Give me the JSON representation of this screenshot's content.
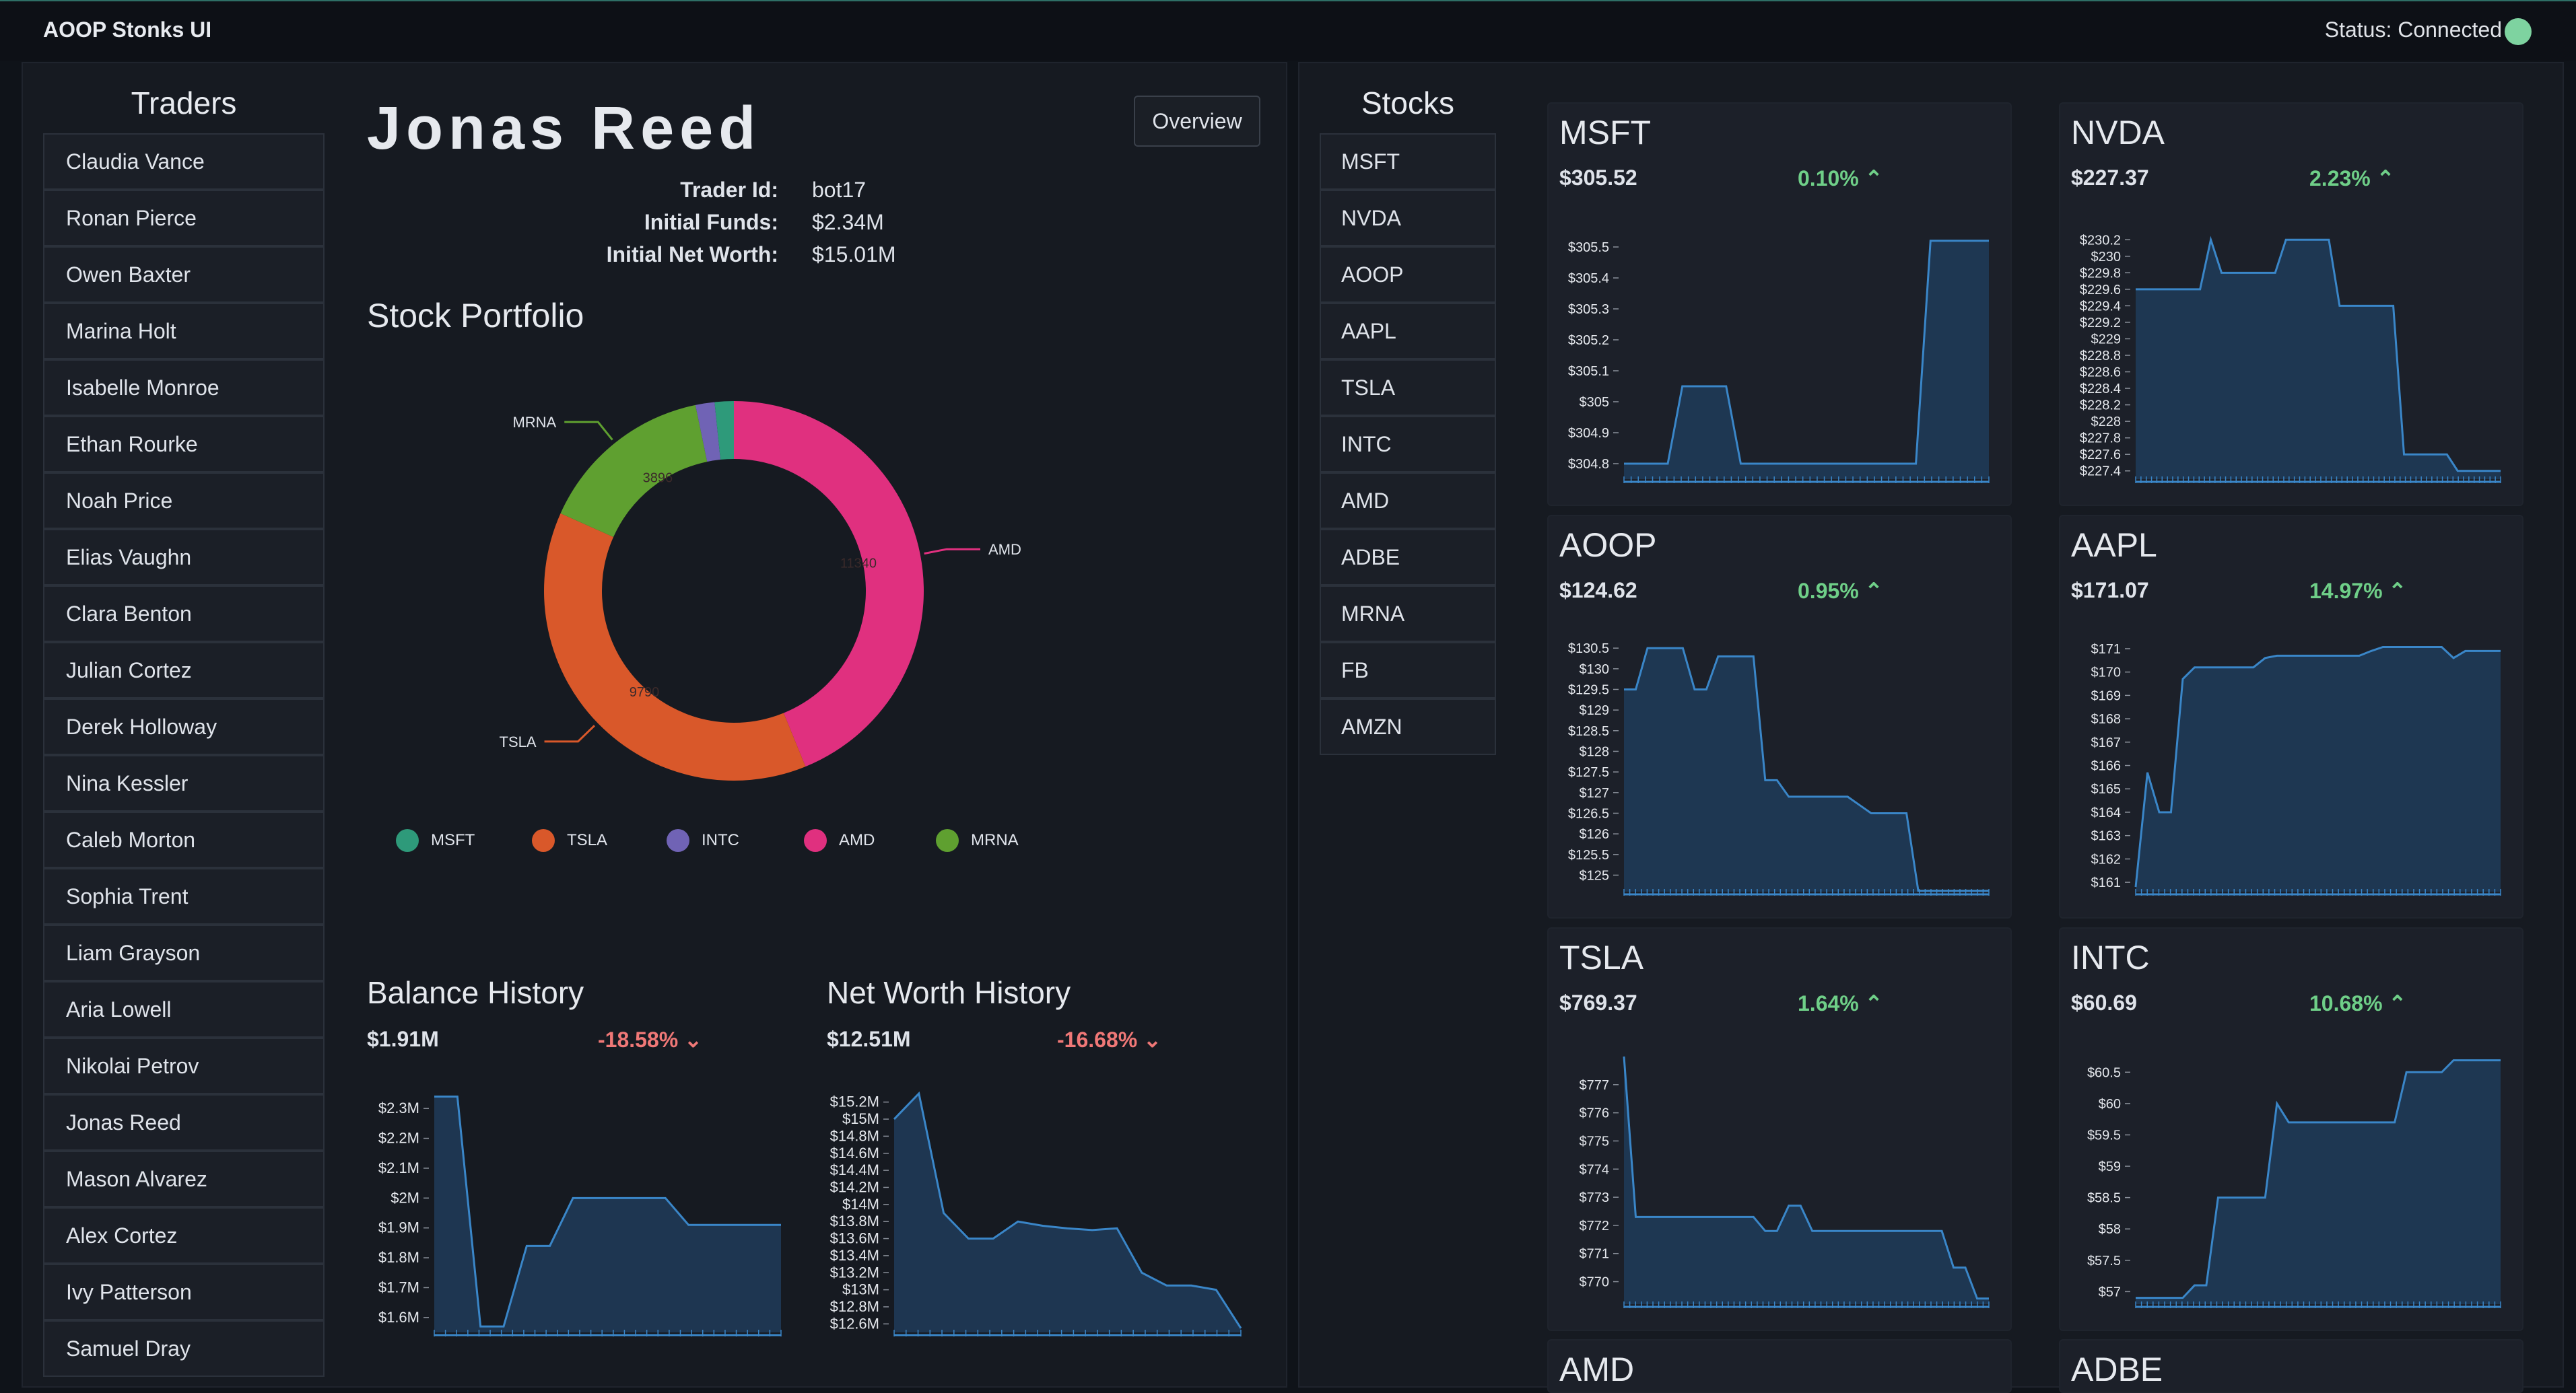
{
  "app": {
    "title": "AOOP Stonks UI",
    "status": "Status: Connected",
    "status_color": "#7ed3a0"
  },
  "traders": {
    "title": "Traders",
    "items": [
      "Claudia Vance",
      "Ronan Pierce",
      "Owen Baxter",
      "Marina Holt",
      "Isabelle Monroe",
      "Ethan Rourke",
      "Noah Price",
      "Elias Vaughn",
      "Clara Benton",
      "Julian Cortez",
      "Derek Holloway",
      "Nina Kessler",
      "Caleb Morton",
      "Sophia Trent",
      "Liam Grayson",
      "Aria Lowell",
      "Nikolai Petrov",
      "Jonas Reed",
      "Mason Alvarez",
      "Alex Cortez",
      "Ivy Patterson",
      "Samuel Dray"
    ]
  },
  "trader": {
    "name": "Jonas Reed",
    "overview_label": "Overview",
    "id_label": "Trader Id:",
    "id_value": "bot17",
    "funds_label": "Initial Funds:",
    "funds_value": "$2.34M",
    "networth_label": "Initial Net Worth:",
    "networth_value": "$15.01M"
  },
  "portfolio": {
    "title": "Stock Portfolio",
    "chart_data": {
      "type": "pie",
      "donut": true,
      "slices": [
        {
          "label": "AMD",
          "value": 11340,
          "color": "#e0307f"
        },
        {
          "label": "TSLA",
          "value": 9790,
          "color": "#d9582a"
        },
        {
          "label": "MRNA",
          "value": 3896,
          "color": "#5fa030"
        },
        {
          "label": "INTC",
          "value": 420,
          "color": "#7063b5"
        },
        {
          "label": "MSFT",
          "value": 420,
          "color": "#2e9a7a"
        }
      ],
      "legend": [
        "MSFT",
        "TSLA",
        "INTC",
        "AMD",
        "MRNA"
      ],
      "legend_placement": "bottom"
    }
  },
  "balance": {
    "title": "Balance History",
    "value": "$1.91M",
    "change": "-18.58%",
    "chart_data": {
      "type": "area",
      "ylim": [
        1.55,
        2.35
      ],
      "yticks": [
        "$1.6M",
        "$1.7M",
        "$1.8M",
        "$1.9M",
        "$2M",
        "$2.1M",
        "$2.2M",
        "$2.3M"
      ],
      "ytick_values": [
        1.6,
        1.7,
        1.8,
        1.9,
        2.0,
        2.1,
        2.2,
        2.3
      ],
      "values": [
        2.34,
        2.34,
        1.57,
        1.57,
        1.84,
        1.84,
        2.0,
        2.0,
        2.0,
        2.0,
        2.0,
        1.91,
        1.91,
        1.91,
        1.91,
        1.91
      ]
    }
  },
  "networth": {
    "title": "Net Worth History",
    "value": "$12.51M",
    "change": "-16.68%",
    "chart_data": {
      "type": "area",
      "ylim": [
        12.5,
        15.3
      ],
      "yticks": [
        "$12.6M",
        "$12.8M",
        "$13M",
        "$13.2M",
        "$13.4M",
        "$13.6M",
        "$13.8M",
        "$14M",
        "$14.2M",
        "$14.4M",
        "$14.6M",
        "$14.8M",
        "$15M",
        "$15.2M"
      ],
      "ytick_values": [
        12.6,
        12.8,
        13.0,
        13.2,
        13.4,
        13.6,
        13.8,
        14.0,
        14.2,
        14.4,
        14.6,
        14.8,
        15.0,
        15.2
      ],
      "values": [
        15.0,
        15.3,
        13.9,
        13.6,
        13.6,
        13.8,
        13.75,
        13.72,
        13.7,
        13.72,
        13.2,
        13.05,
        13.05,
        13.0,
        12.55
      ]
    }
  },
  "stocks": {
    "title": "Stocks",
    "items": [
      "MSFT",
      "NVDA",
      "AOOP",
      "AAPL",
      "TSLA",
      "INTC",
      "AMD",
      "ADBE",
      "MRNA",
      "FB",
      "AMZN"
    ]
  },
  "cards": [
    {
      "ticker": "MSFT",
      "price": "$305.52",
      "change": "0.10%",
      "chart_data": {
        "type": "area",
        "ylim": [
          304.75,
          305.55
        ],
        "yticks": [
          "$305.5",
          "$305.4",
          "$305.3",
          "$305.2",
          "$305.1",
          "$305",
          "$304.9",
          "$304.8"
        ],
        "ytick_values": [
          305.5,
          305.4,
          305.3,
          305.2,
          305.1,
          305.0,
          304.9,
          304.8
        ],
        "values": [
          304.8,
          304.8,
          304.8,
          304.8,
          305.05,
          305.05,
          305.05,
          305.05,
          304.8,
          304.8,
          304.8,
          304.8,
          304.8,
          304.8,
          304.8,
          304.8,
          304.8,
          304.8,
          304.8,
          304.8,
          304.8,
          305.52,
          305.52,
          305.52,
          305.52,
          305.52
        ]
      }
    },
    {
      "ticker": "NVDA",
      "price": "$227.37",
      "change": "2.23%",
      "chart_data": {
        "type": "area",
        "ylim": [
          227.3,
          230.3
        ],
        "yticks": [
          "$230.2",
          "$230",
          "$229.8",
          "$229.6",
          "$229.4",
          "$229.2",
          "$229",
          "$228.8",
          "$228.6",
          "$228.4",
          "$228.2",
          "$228",
          "$227.8",
          "$227.6",
          "$227.4"
        ],
        "ytick_values": [
          230.2,
          230.0,
          229.8,
          229.6,
          229.4,
          229.2,
          229.0,
          228.8,
          228.6,
          228.4,
          228.2,
          228.0,
          227.8,
          227.6,
          227.4
        ],
        "values": [
          229.6,
          229.6,
          229.6,
          229.6,
          229.6,
          229.6,
          229.6,
          230.2,
          229.8,
          229.8,
          229.8,
          229.8,
          229.8,
          229.8,
          230.2,
          230.2,
          230.2,
          230.2,
          230.2,
          229.4,
          229.4,
          229.4,
          229.4,
          229.4,
          229.4,
          227.6,
          227.6,
          227.6,
          227.6,
          227.6,
          227.4,
          227.4,
          227.4,
          227.4,
          227.4
        ]
      }
    },
    {
      "ticker": "AOOP",
      "price": "$124.62",
      "change": "0.95%",
      "chart_data": {
        "type": "area",
        "ylim": [
          124.6,
          130.6
        ],
        "yticks": [
          "$130.5",
          "$130",
          "$129.5",
          "$129",
          "$128.5",
          "$128",
          "$127.5",
          "$127",
          "$126.5",
          "$126",
          "$125.5",
          "$125"
        ],
        "ytick_values": [
          130.5,
          130.0,
          129.5,
          129.0,
          128.5,
          128.0,
          127.5,
          127.0,
          126.5,
          126.0,
          125.5,
          125.0
        ],
        "values": [
          129.5,
          129.5,
          130.5,
          130.5,
          130.5,
          130.5,
          129.5,
          129.5,
          130.3,
          130.3,
          130.3,
          130.3,
          127.3,
          127.3,
          126.9,
          126.9,
          126.9,
          126.9,
          126.9,
          126.9,
          126.7,
          126.5,
          126.5,
          126.5,
          126.5,
          124.62,
          124.62,
          124.62,
          124.62,
          124.62,
          124.62,
          124.62
        ]
      }
    },
    {
      "ticker": "AAPL",
      "price": "$171.07",
      "change": "14.97%",
      "chart_data": {
        "type": "area",
        "ylim": [
          160.6,
          171.2
        ],
        "yticks": [
          "$171",
          "$170",
          "$169",
          "$168",
          "$167",
          "$166",
          "$165",
          "$164",
          "$163",
          "$162",
          "$161"
        ],
        "ytick_values": [
          171,
          170,
          169,
          168,
          167,
          166,
          165,
          164,
          163,
          162,
          161
        ],
        "values": [
          160.8,
          165.7,
          164,
          164,
          169.7,
          170.2,
          170.2,
          170.2,
          170.2,
          170.2,
          170.2,
          170.6,
          170.7,
          170.7,
          170.7,
          170.7,
          170.7,
          170.7,
          170.7,
          170.7,
          170.9,
          171.07,
          171.07,
          171.07,
          171.07,
          171.07,
          171.07,
          170.6,
          170.9,
          170.9,
          170.9,
          170.9
        ]
      }
    },
    {
      "ticker": "TSLA",
      "price": "$769.37",
      "change": "1.64%",
      "chart_data": {
        "type": "area",
        "ylim": [
          769.2,
          778.0
        ],
        "yticks": [
          "$777",
          "$776",
          "$775",
          "$774",
          "$773",
          "$772",
          "$771",
          "$770"
        ],
        "ytick_values": [
          777,
          776,
          775,
          774,
          773,
          772,
          771,
          770
        ],
        "values": [
          778,
          772.3,
          772.3,
          772.3,
          772.3,
          772.3,
          772.3,
          772.3,
          772.3,
          772.3,
          772.3,
          772.3,
          771.8,
          771.8,
          772.7,
          772.7,
          771.8,
          771.8,
          771.8,
          771.8,
          771.8,
          771.8,
          771.8,
          771.8,
          771.8,
          771.8,
          771.8,
          771.8,
          770.5,
          770.5,
          769.4,
          769.4
        ]
      }
    },
    {
      "ticker": "INTC",
      "price": "$60.69",
      "change": "10.68%",
      "chart_data": {
        "type": "area",
        "ylim": [
          56.8,
          60.75
        ],
        "yticks": [
          "$60.5",
          "$60",
          "$59.5",
          "$59",
          "$58.5",
          "$58",
          "$57.5",
          "$57"
        ],
        "ytick_values": [
          60.5,
          60,
          59.5,
          59,
          58.5,
          58,
          57.5,
          57
        ],
        "values": [
          56.9,
          56.9,
          56.9,
          56.9,
          56.9,
          57.1,
          57.1,
          58.5,
          58.5,
          58.5,
          58.5,
          58.5,
          60.0,
          59.7,
          59.7,
          59.7,
          59.7,
          59.7,
          59.7,
          59.7,
          59.7,
          59.7,
          59.7,
          60.5,
          60.5,
          60.5,
          60.5,
          60.69,
          60.69,
          60.69,
          60.69,
          60.69
        ]
      }
    },
    {
      "ticker": "AMD"
    },
    {
      "ticker": "ADBE"
    }
  ]
}
